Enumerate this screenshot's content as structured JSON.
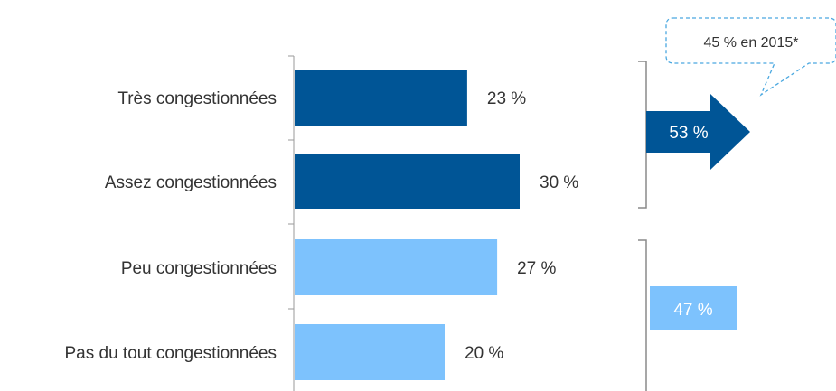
{
  "chart_data": {
    "type": "bar",
    "orientation": "horizontal",
    "categories": [
      "Très congestionnées",
      "Assez congestionnées",
      "Peu congestionnées",
      "Pas du tout congestionnées"
    ],
    "values": [
      23,
      30,
      27,
      20
    ],
    "value_labels": [
      "23 %",
      "30 %",
      "27 %",
      "20 %"
    ],
    "bar_colors": [
      "#005596",
      "#005596",
      "#7dc2fd",
      "#7dc2fd"
    ],
    "xlim": [
      0,
      100
    ],
    "grid": false,
    "groups": [
      {
        "label": "53 %",
        "value": 53,
        "color": "#005596",
        "text_color": "#ffffff",
        "shape": "arrow",
        "members": [
          0,
          1
        ]
      },
      {
        "label": "47 %",
        "value": 47,
        "color": "#7dc2fd",
        "text_color": "#ffffff",
        "shape": "box",
        "members": [
          2,
          3
        ]
      }
    ],
    "annotation": {
      "text": "45 % en 2015*",
      "border_color": "#4aa8e0"
    }
  }
}
